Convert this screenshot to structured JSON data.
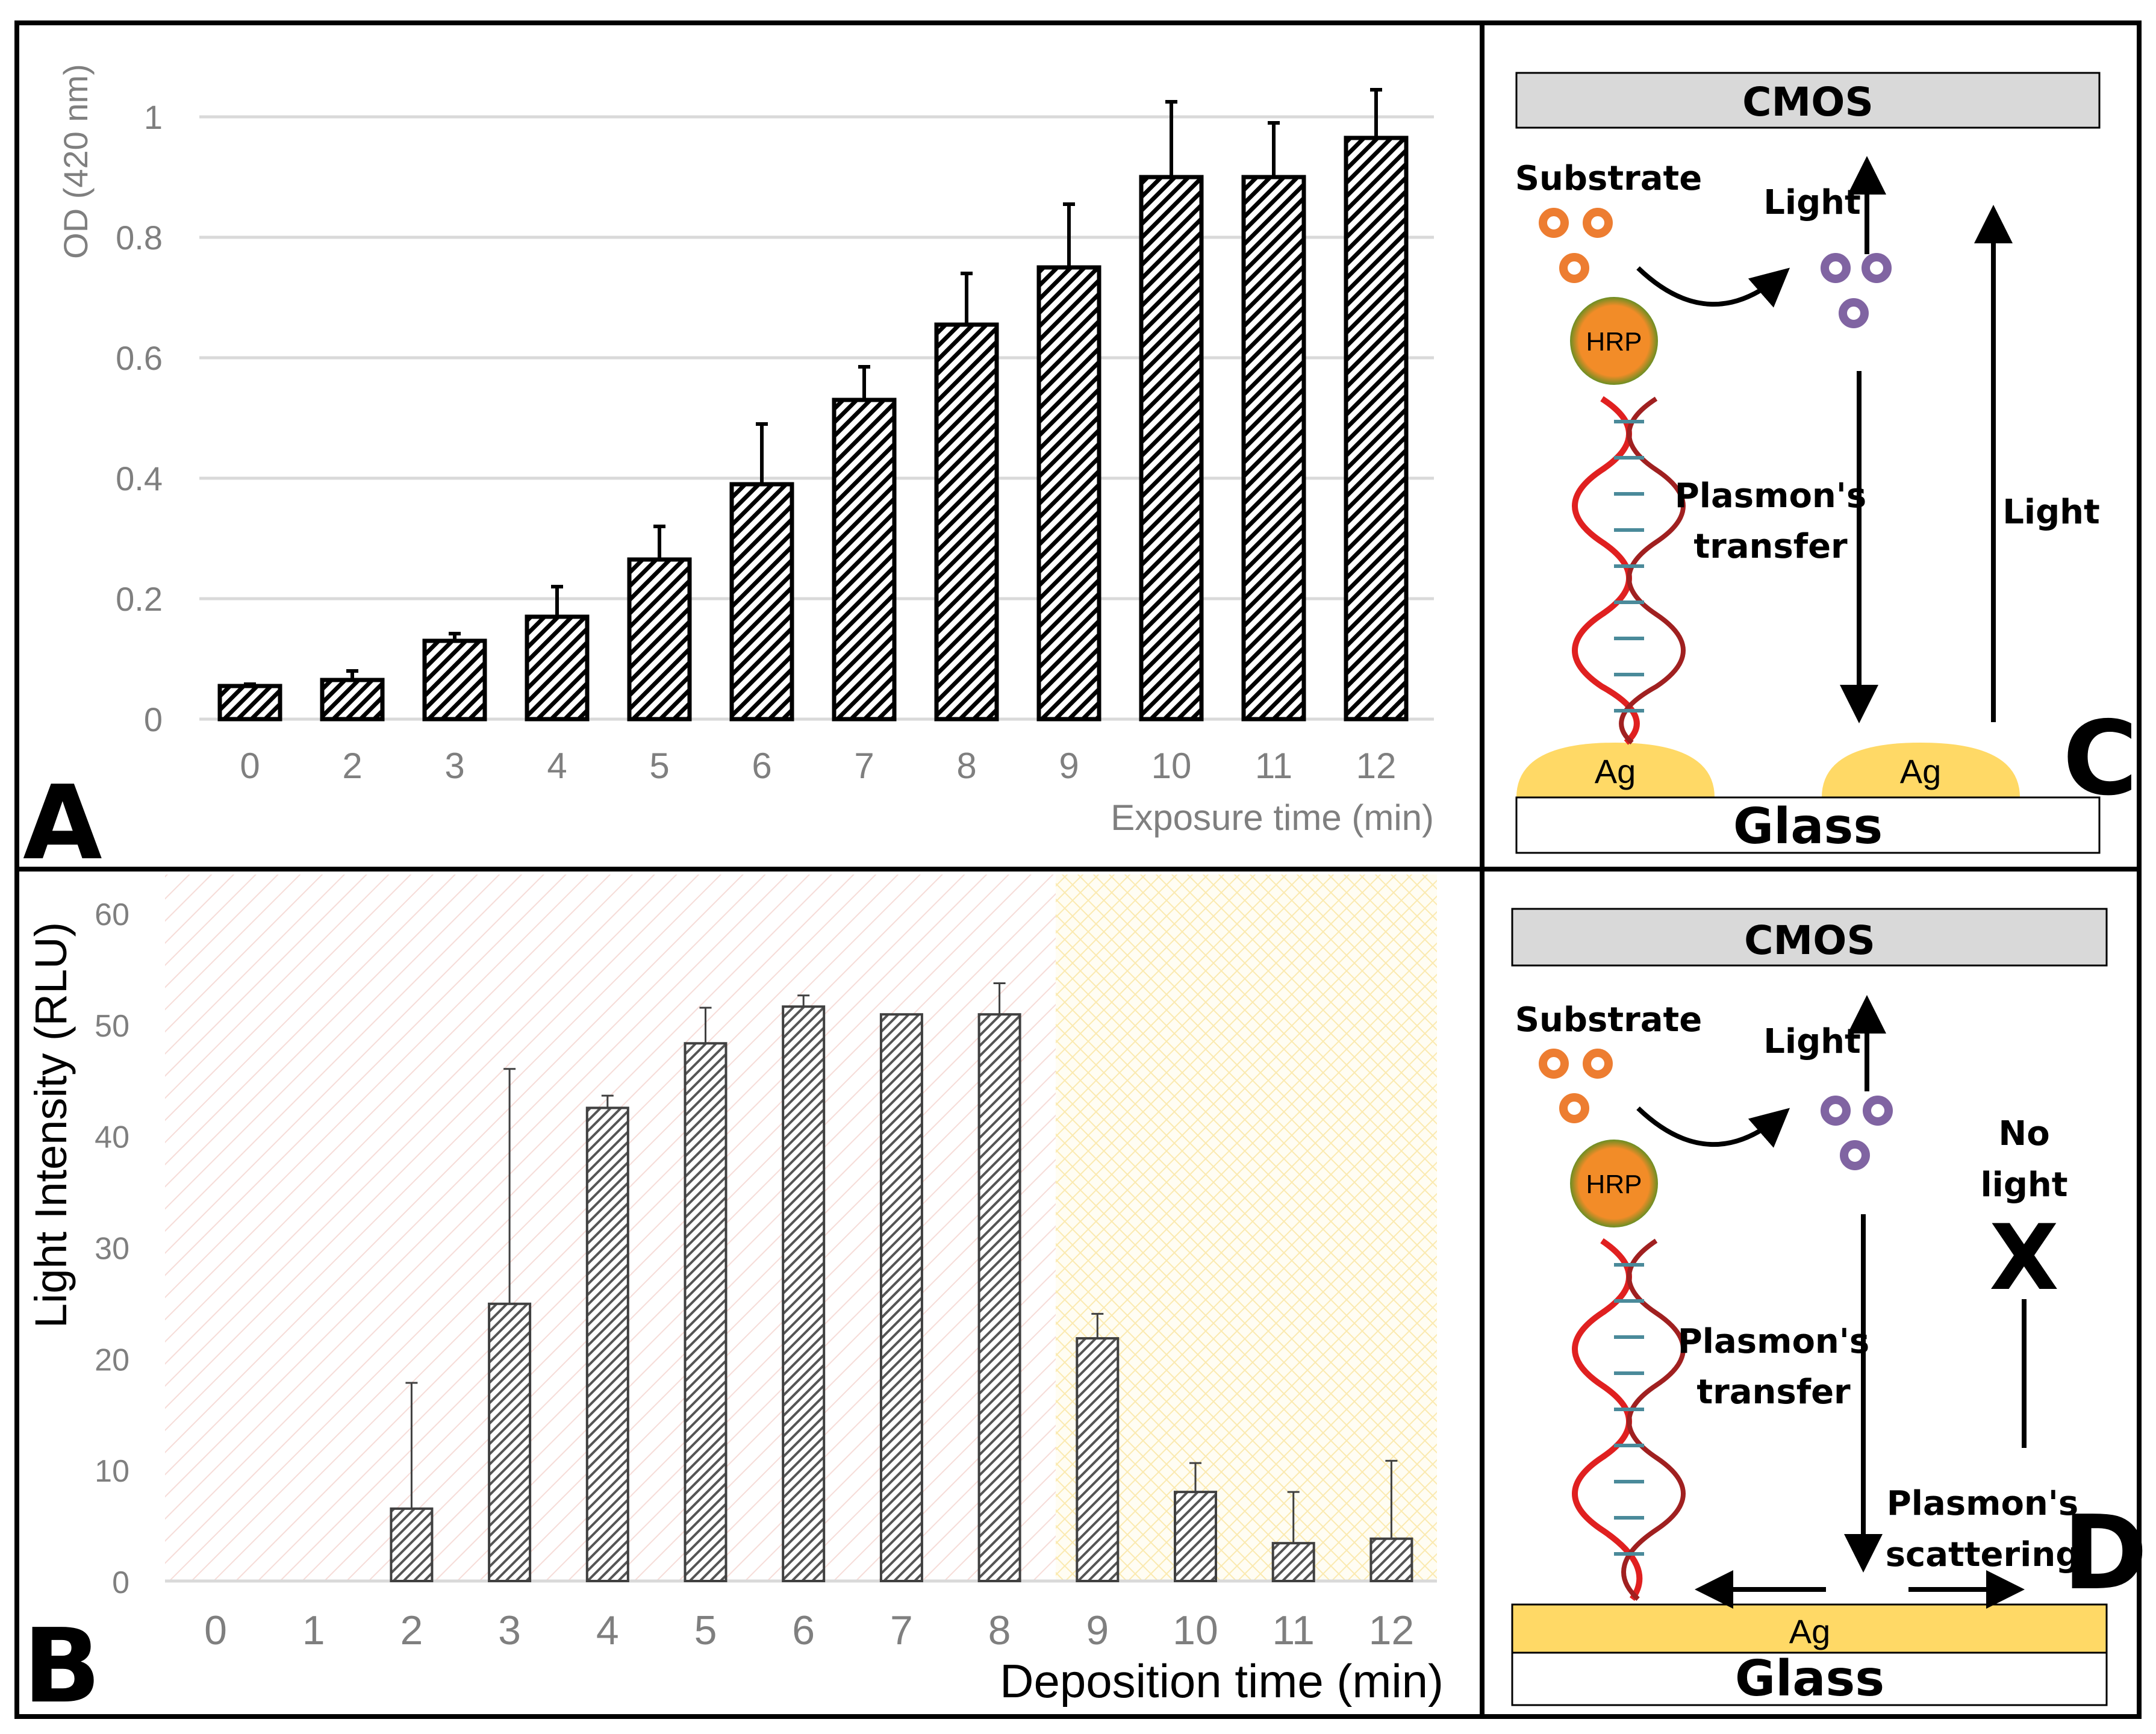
{
  "chart_data": [
    {
      "type": "bar",
      "panel": "A",
      "categories": [
        "0",
        "2",
        "3",
        "4",
        "5",
        "6",
        "7",
        "8",
        "9",
        "10",
        "11",
        "12"
      ],
      "values": [
        0.055,
        0.065,
        0.13,
        0.17,
        0.265,
        0.39,
        0.53,
        0.655,
        0.75,
        0.9,
        0.9,
        0.965
      ],
      "error_upper": [
        0.003,
        0.015,
        0.012,
        0.05,
        0.055,
        0.1,
        0.055,
        0.085,
        0.105,
        0.125,
        0.09,
        0.08
      ],
      "xlabel": "Exposure time (min)",
      "ylabel": "OD (420 nm)",
      "ylim": [
        0,
        1
      ],
      "yticks": [
        "0",
        "0.2",
        "0.4",
        "0.6",
        "0.8",
        "1"
      ],
      "ytick_values": [
        0,
        0.2,
        0.4,
        0.6,
        0.8,
        1
      ],
      "grid": true
    },
    {
      "type": "bar",
      "panel": "B",
      "categories": [
        "0",
        "1",
        "2",
        "3",
        "4",
        "5",
        "6",
        "7",
        "8",
        "9",
        "10",
        "11",
        "12"
      ],
      "values": [
        0,
        0,
        6.5,
        24.9,
        42.5,
        48.3,
        51.6,
        50.9,
        50.9,
        21.8,
        8,
        3.4,
        3.8
      ],
      "error_upper": [
        0,
        0,
        11.3,
        21.1,
        1.1,
        3.2,
        1.0,
        0,
        2.8,
        2.2,
        2.6,
        4.6,
        7.0
      ],
      "xlabel": "Deposition time (min)",
      "ylabel": "Light Intensity (RLU)",
      "ylim": [
        0,
        60
      ],
      "yticks": [
        "0",
        "10",
        "20",
        "30",
        "40",
        "50",
        "60"
      ],
      "ytick_values": [
        0,
        10,
        20,
        30,
        40,
        50,
        60
      ],
      "grid": false,
      "shaded_regions": [
        {
          "from": "0",
          "to": "8",
          "color": "#f4c7c3"
        },
        {
          "from": "9",
          "to": "12",
          "color": "#ffe699"
        }
      ]
    }
  ],
  "panels": {
    "a": "A",
    "b": "B",
    "c": "C",
    "d": "D"
  },
  "diagram_c": {
    "cmos": "CMOS",
    "substrate": "Substrate",
    "light_top": "Light",
    "hrp": "HRP",
    "plasmon_1": "Plasmon's",
    "plasmon_2": "transfer",
    "light_right": "Light",
    "ag_left": "Ag",
    "ag_right": "Ag",
    "glass": "Glass"
  },
  "diagram_d": {
    "cmos": "CMOS",
    "substrate": "Substrate",
    "light_top": "Light",
    "hrp": "HRP",
    "plasmon_1": "Plasmon's",
    "plasmon_2": "transfer",
    "no_light_1": "No",
    "no_light_2": "light",
    "x_mark": "X",
    "scatter_1": "Plasmon's",
    "scatter_2": "scattering",
    "ag": "Ag",
    "glass": "Glass"
  },
  "colors": {
    "substrate": "#ed7d31",
    "product": "#8064a2",
    "hrp": "#f28c28",
    "ag": "#ffd966",
    "cmos": "#d9d9d9",
    "dna_red": "#e02020"
  }
}
